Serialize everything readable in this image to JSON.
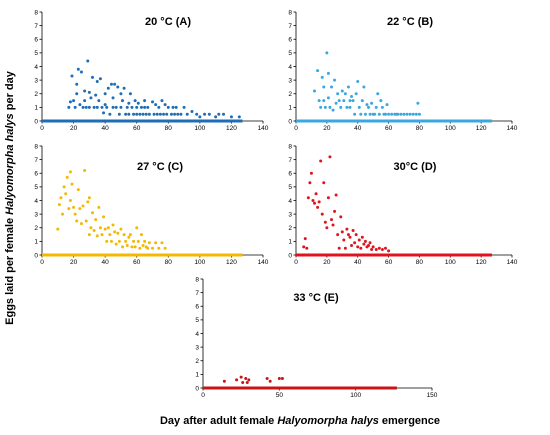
{
  "figure": {
    "ylabel_parts": [
      "Eggs laid per female ",
      "Halyomorpha halys",
      " per day"
    ],
    "xlabel_parts": [
      "Day after adult female ",
      "Halyomorpha halys",
      " emergence"
    ]
  },
  "chart_data": [
    {
      "type": "scatter",
      "title": "20 °C (A)",
      "color": "#1f6db5",
      "xlim": [
        0,
        140
      ],
      "ylim": [
        0,
        8
      ],
      "xticks": [
        0,
        20,
        40,
        60,
        80,
        100,
        120,
        140
      ],
      "yticks": [
        0,
        1,
        2,
        3,
        4,
        5,
        6,
        7,
        8
      ],
      "baseline_x": [
        0,
        127
      ],
      "x": [
        17,
        18,
        19,
        20,
        21,
        22,
        22,
        23,
        24,
        25,
        26,
        27,
        27,
        28,
        29,
        30,
        30,
        31,
        32,
        33,
        34,
        35,
        35,
        36,
        37,
        38,
        39,
        40,
        40,
        41,
        42,
        43,
        44,
        45,
        45,
        46,
        47,
        48,
        49,
        50,
        50,
        51,
        52,
        53,
        54,
        55,
        55,
        56,
        57,
        58,
        59,
        60,
        60,
        61,
        62,
        63,
        64,
        65,
        65,
        66,
        67,
        68,
        70,
        71,
        72,
        73,
        74,
        75,
        76,
        77,
        78,
        79,
        80,
        82,
        83,
        84,
        85,
        86,
        88,
        90,
        92,
        95,
        98,
        100,
        103,
        106,
        110,
        112,
        115,
        120,
        125
      ],
      "y": [
        1.0,
        1.4,
        3.3,
        1.5,
        1.0,
        2.0,
        2.7,
        3.8,
        1.2,
        3.6,
        1.0,
        1.5,
        2.2,
        1.0,
        4.4,
        2.1,
        1.0,
        1.7,
        3.2,
        1.0,
        1.9,
        2.9,
        1.0,
        1.5,
        3.1,
        1.0,
        0.6,
        1.2,
        2.0,
        1.0,
        2.4,
        0.5,
        2.7,
        1.7,
        1.0,
        2.7,
        1.0,
        2.5,
        0.5,
        2.0,
        1.0,
        1.5,
        2.4,
        0.5,
        1.0,
        1.3,
        0.5,
        2.0,
        1.0,
        0.5,
        1.5,
        1.0,
        0.5,
        1.3,
        0.5,
        1.0,
        0.5,
        1.5,
        1.0,
        0.5,
        1.0,
        0.5,
        1.4,
        0.5,
        1.2,
        0.5,
        1.0,
        0.5,
        1.5,
        0.5,
        1.2,
        0.5,
        1.0,
        0.5,
        1.0,
        0.5,
        1.0,
        0.5,
        0.5,
        1.0,
        0.5,
        0.7,
        0.5,
        0.3,
        0.5,
        0.5,
        0.3,
        0.5,
        0.5,
        0.3,
        0.3
      ]
    },
    {
      "type": "scatter",
      "title": "22 °C (B)",
      "color": "#3ba7e0",
      "xlim": [
        0,
        140
      ],
      "ylim": [
        0,
        8
      ],
      "xticks": [
        0,
        20,
        40,
        60,
        80,
        100,
        120,
        140
      ],
      "yticks": [
        0,
        1,
        2,
        3,
        4,
        5,
        6,
        7,
        8
      ],
      "baseline_x": [
        0,
        127
      ],
      "x": [
        12,
        14,
        15,
        16,
        17,
        18,
        18,
        19,
        20,
        21,
        21,
        22,
        23,
        24,
        25,
        26,
        27,
        28,
        29,
        30,
        31,
        32,
        33,
        34,
        35,
        35,
        36,
        37,
        38,
        39,
        40,
        41,
        42,
        43,
        44,
        45,
        46,
        47,
        48,
        49,
        50,
        51,
        52,
        53,
        54,
        55,
        56,
        57,
        58,
        59,
        60,
        62,
        64,
        65,
        66,
        68,
        70,
        72,
        74,
        76,
        78,
        79,
        80
      ],
      "y": [
        2.2,
        3.7,
        1.5,
        1.0,
        3.2,
        1.5,
        2.5,
        1.0,
        5.0,
        1.7,
        3.5,
        1.0,
        2.5,
        0.8,
        3.0,
        1.3,
        2.0,
        1.5,
        1.0,
        2.2,
        1.5,
        2.0,
        1.0,
        2.5,
        1.5,
        1.0,
        1.8,
        1.5,
        0.5,
        2.0,
        2.9,
        1.0,
        0.5,
        1.5,
        2.5,
        0.5,
        1.2,
        1.0,
        0.5,
        1.3,
        0.5,
        0.5,
        1.0,
        2.0,
        0.5,
        1.5,
        1.0,
        0.5,
        0.5,
        1.2,
        0.5,
        0.5,
        0.5,
        0.5,
        0.5,
        0.5,
        0.5,
        0.5,
        0.5,
        0.5,
        0.5,
        1.3,
        0.5
      ]
    },
    {
      "type": "scatter",
      "title": "27 °C (C)",
      "color": "#f5b800",
      "xlim": [
        0,
        140
      ],
      "ylim": [
        0,
        8
      ],
      "xticks": [
        0,
        20,
        40,
        60,
        80,
        100,
        120,
        140
      ],
      "yticks": [
        0,
        1,
        2,
        3,
        4,
        5,
        6,
        7,
        8
      ],
      "baseline_x": [
        0,
        127
      ],
      "x": [
        10,
        11,
        12,
        13,
        14,
        15,
        16,
        17,
        18,
        18,
        19,
        20,
        21,
        22,
        23,
        24,
        25,
        26,
        27,
        28,
        29,
        30,
        30,
        31,
        32,
        33,
        34,
        35,
        36,
        37,
        38,
        39,
        40,
        41,
        42,
        43,
        44,
        45,
        46,
        47,
        48,
        49,
        50,
        51,
        52,
        53,
        54,
        55,
        56,
        57,
        58,
        59,
        60,
        61,
        62,
        63,
        64,
        65,
        66,
        67,
        68,
        70,
        72,
        74,
        76,
        78
      ],
      "y": [
        1.9,
        3.7,
        4.2,
        3.0,
        5.0,
        4.5,
        5.7,
        3.4,
        6.1,
        4.0,
        5.2,
        3.5,
        3.0,
        2.5,
        4.8,
        3.4,
        2.3,
        3.6,
        6.2,
        2.5,
        3.9,
        1.5,
        4.2,
        2.0,
        3.1,
        1.8,
        2.6,
        1.4,
        3.5,
        2.0,
        1.5,
        2.8,
        1.9,
        1.0,
        2.0,
        1.5,
        1.0,
        2.2,
        1.7,
        0.8,
        1.6,
        1.0,
        1.9,
        0.6,
        1.5,
        1.0,
        0.7,
        1.3,
        1.5,
        0.6,
        1.0,
        0.6,
        2.0,
        1.0,
        0.5,
        1.5,
        0.7,
        1.0,
        0.6,
        0.5,
        0.9,
        0.5,
        0.9,
        0.5,
        0.9,
        0.5
      ]
    },
    {
      "type": "scatter",
      "title": "30°C (D)",
      "color": "#e0141e",
      "xlim": [
        0,
        140
      ],
      "ylim": [
        0,
        8
      ],
      "xticks": [
        0,
        20,
        40,
        60,
        80,
        100,
        120,
        140
      ],
      "yticks": [
        0,
        1,
        2,
        3,
        4,
        5,
        6,
        7,
        8
      ],
      "baseline_x": [
        0,
        127
      ],
      "x": [
        5,
        6,
        7,
        8,
        9,
        10,
        11,
        12,
        13,
        14,
        15,
        16,
        17,
        18,
        19,
        20,
        21,
        22,
        23,
        24,
        25,
        26,
        27,
        28,
        29,
        30,
        31,
        32,
        33,
        34,
        35,
        36,
        37,
        38,
        39,
        40,
        41,
        42,
        43,
        44,
        45,
        46,
        47,
        48,
        49,
        50,
        52,
        54,
        56,
        58,
        60
      ],
      "y": [
        0.6,
        1.2,
        0.5,
        4.2,
        5.3,
        6.0,
        4.0,
        3.8,
        4.5,
        3.5,
        3.9,
        6.9,
        3.0,
        5.3,
        2.4,
        2.0,
        4.2,
        7.2,
        2.6,
        2.2,
        3.2,
        4.4,
        1.5,
        0.5,
        2.8,
        1.7,
        1.1,
        0.5,
        1.9,
        1.5,
        1.3,
        0.7,
        1.8,
        0.9,
        1.5,
        0.6,
        1.1,
        0.5,
        1.3,
        0.8,
        1.0,
        0.6,
        0.7,
        0.9,
        0.4,
        0.6,
        0.4,
        0.5,
        0.4,
        0.5,
        0.3
      ]
    },
    {
      "type": "scatter",
      "title": "33 °C (E)",
      "color": "#c81414",
      "xlim": [
        0,
        150
      ],
      "ylim": [
        0,
        8
      ],
      "xticks": [
        0,
        50,
        100,
        150
      ],
      "yticks": [
        0,
        1,
        2,
        3,
        4,
        5,
        6,
        7,
        8
      ],
      "baseline_x": [
        0,
        127
      ],
      "x": [
        14,
        22,
        25,
        26,
        28,
        29,
        30,
        42,
        44,
        50,
        52
      ],
      "y": [
        0.5,
        0.6,
        0.8,
        0.4,
        0.7,
        0.4,
        0.6,
        0.7,
        0.5,
        0.7,
        0.7
      ]
    }
  ]
}
